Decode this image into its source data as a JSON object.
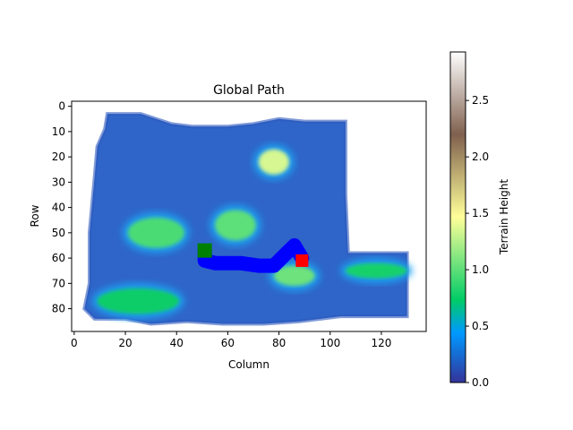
{
  "chart_data": {
    "type": "heatmap",
    "title": "Global Path",
    "xlabel": "Column",
    "ylabel": "Row",
    "xlim": [
      -1,
      137.5
    ],
    "ylim": [
      89,
      -2
    ],
    "x_ticks": [
      0,
      20,
      40,
      60,
      80,
      100,
      120
    ],
    "y_ticks": [
      0,
      10,
      20,
      30,
      40,
      50,
      60,
      70,
      80
    ],
    "colorbar": {
      "label": "Terrain Height",
      "colormap": "terrain",
      "min": 0.0,
      "max": 2.93,
      "ticks": [
        0.0,
        0.5,
        1.0,
        1.5,
        2.0,
        2.5
      ]
    },
    "terrain_outline": [
      [
        13,
        3
      ],
      [
        26,
        3
      ],
      [
        32,
        5
      ],
      [
        38,
        7
      ],
      [
        46,
        8
      ],
      [
        60,
        8
      ],
      [
        70,
        7
      ],
      [
        80,
        5
      ],
      [
        90,
        6
      ],
      [
        106,
        6
      ],
      [
        106,
        35
      ],
      [
        107,
        58
      ],
      [
        130,
        58
      ],
      [
        130,
        83
      ],
      [
        104,
        83
      ],
      [
        88,
        85
      ],
      [
        74,
        86
      ],
      [
        58,
        86
      ],
      [
        44,
        85
      ],
      [
        30,
        86
      ],
      [
        20,
        84
      ],
      [
        8,
        84
      ],
      [
        4,
        80
      ],
      [
        6,
        70
      ],
      [
        6,
        50
      ],
      [
        8,
        28
      ],
      [
        9,
        16
      ],
      [
        12,
        9
      ]
    ],
    "terrain_features": [
      {
        "cx": 32,
        "cy": 50,
        "rx": 11,
        "ry": 6,
        "height": 0.95
      },
      {
        "cx": 63,
        "cy": 47,
        "rx": 8,
        "ry": 6,
        "height": 1.0
      },
      {
        "cx": 78,
        "cy": 22,
        "rx": 6,
        "ry": 5,
        "height": 1.35
      },
      {
        "cx": 86,
        "cy": 67,
        "rx": 8,
        "ry": 4,
        "height": 1.05
      },
      {
        "cx": 25,
        "cy": 77,
        "rx": 16,
        "ry": 5,
        "height": 0.75
      },
      {
        "cx": 118,
        "cy": 65,
        "rx": 12,
        "ry": 3,
        "height": 0.8
      }
    ],
    "global_path": [
      [
        51,
        57
      ],
      [
        51,
        61
      ],
      [
        55,
        62
      ],
      [
        65,
        62
      ],
      [
        72,
        63
      ],
      [
        78,
        63
      ],
      [
        84,
        57
      ],
      [
        86,
        55
      ],
      [
        89,
        60
      ]
    ],
    "start": {
      "x": 51,
      "y": 57
    },
    "goal": {
      "x": 89,
      "y": 61
    },
    "colors": {
      "path": "#0000ff",
      "start": "#008000",
      "goal": "#ff0000",
      "terrain_low": "#333399",
      "terrain_mid": "#00c27a",
      "terrain_high": "#ffffff"
    }
  }
}
